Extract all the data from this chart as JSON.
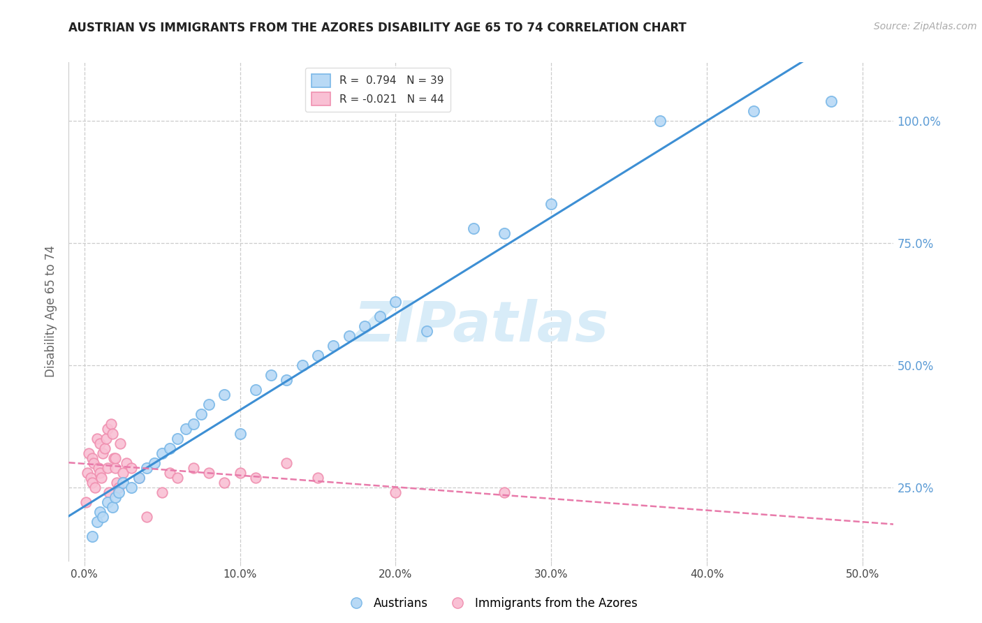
{
  "title": "AUSTRIAN VS IMMIGRANTS FROM THE AZORES DISABILITY AGE 65 TO 74 CORRELATION CHART",
  "source": "Source: ZipAtlas.com",
  "ylabel": "Disability Age 65 to 74",
  "xlabel_vals": [
    0,
    10,
    20,
    30,
    40,
    50
  ],
  "ylabel_vals": [
    25,
    50,
    75,
    100
  ],
  "xlim": [
    -1,
    52
  ],
  "ylim": [
    10,
    112
  ],
  "legend1_label": "R =  0.794   N = 39",
  "legend2_label": "R = -0.021   N = 44",
  "legend_austrians": "Austrians",
  "legend_azores": "Immigrants from the Azores",
  "blue_scatter_face": "#b8d9f5",
  "blue_scatter_edge": "#7ab8e8",
  "pink_scatter_face": "#f9c0d4",
  "pink_scatter_edge": "#f090b0",
  "blue_line_color": "#3d8fd4",
  "pink_line_color": "#e87aaa",
  "grid_color": "#cccccc",
  "watermark_color": "#d8ecf8",
  "ytick_color": "#5b9bd5",
  "title_color": "#222222",
  "source_color": "#aaaaaa",
  "austrians_x": [
    0.5,
    0.8,
    1.0,
    1.2,
    1.5,
    1.8,
    2.0,
    2.2,
    2.5,
    3.0,
    3.5,
    4.0,
    4.5,
    5.0,
    5.5,
    6.0,
    6.5,
    7.0,
    7.5,
    8.0,
    9.0,
    10.0,
    11.0,
    12.0,
    13.0,
    14.0,
    15.0,
    16.0,
    17.0,
    18.0,
    19.0,
    20.0,
    22.0,
    25.0,
    27.0,
    30.0,
    37.0,
    43.0,
    48.0
  ],
  "austrians_y": [
    15,
    18,
    20,
    19,
    22,
    21,
    23,
    24,
    26,
    25,
    27,
    29,
    30,
    32,
    33,
    35,
    37,
    38,
    40,
    42,
    44,
    36,
    45,
    48,
    47,
    50,
    52,
    54,
    56,
    58,
    60,
    63,
    57,
    78,
    77,
    83,
    100,
    102,
    104
  ],
  "azores_x": [
    0.1,
    0.2,
    0.3,
    0.4,
    0.5,
    0.5,
    0.6,
    0.7,
    0.8,
    0.9,
    1.0,
    1.0,
    1.1,
    1.2,
    1.3,
    1.4,
    1.5,
    1.5,
    1.6,
    1.7,
    1.8,
    1.9,
    2.0,
    2.0,
    2.1,
    2.2,
    2.3,
    2.5,
    2.7,
    3.0,
    3.5,
    4.0,
    5.0,
    5.5,
    6.0,
    7.0,
    8.0,
    9.0,
    10.0,
    11.0,
    13.0,
    15.0,
    20.0,
    27.0
  ],
  "azores_y": [
    22,
    28,
    32,
    27,
    26,
    31,
    30,
    25,
    35,
    29,
    28,
    34,
    27,
    32,
    33,
    35,
    29,
    37,
    24,
    38,
    36,
    31,
    29,
    31,
    26,
    25,
    34,
    28,
    30,
    29,
    27,
    19,
    24,
    28,
    27,
    29,
    28,
    26,
    28,
    27,
    30,
    27,
    24,
    24
  ]
}
